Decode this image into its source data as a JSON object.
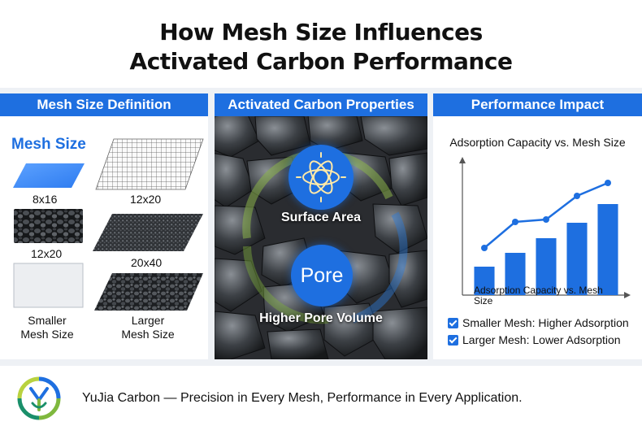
{
  "title": {
    "line1": "How Mesh Size Influences",
    "line2": "Activated Carbon Performance"
  },
  "panels": {
    "definition": {
      "header": "Mesh Size Definition",
      "title": "Mesh Size",
      "labels": {
        "a": "8x16",
        "b": "12x20",
        "c": "12x20",
        "d": "20x40",
        "smaller": "Smaller\nMesh Size",
        "larger": "Larger\nMesh Size"
      }
    },
    "properties": {
      "header": "Activated Carbon Properties",
      "surface_label": "Surface Area",
      "pore_text": "Pore",
      "pore_label": "Higher Pore Volume"
    },
    "impact": {
      "header": "Performance Impact",
      "checks": [
        "Smaller Mesh: Higher Adsorption",
        "Larger Mesh: Lower Adsorption"
      ]
    }
  },
  "chart_data": {
    "type": "bar",
    "title": "Adsorption Capacity vs. Mesh Size",
    "xlabel": "Adsorption Capacity vs. Mesh Size",
    "ylabel": "",
    "categories": [
      "",
      "",
      "",
      "",
      ""
    ],
    "series": [
      {
        "type": "bar",
        "values": [
          35,
          52,
          70,
          89,
          112
        ]
      },
      {
        "type": "line",
        "values": [
          58,
          90,
          93,
          122,
          138
        ]
      }
    ],
    "ylim": [
      0,
      160
    ],
    "grid": false,
    "colors": {
      "bar": "#1e6fe0",
      "line": "#1e6fe0"
    }
  },
  "footer": {
    "text": "YuJia Carbon — Precision in Every Mesh, Performance in Every Application.",
    "logo": "yujia-carbon-logo"
  },
  "colors": {
    "accent": "#1e6fe0",
    "band": "#eef1f5"
  },
  "icons": {
    "surface": "atom-sun-icon",
    "check": "checkbox-checked-icon"
  }
}
